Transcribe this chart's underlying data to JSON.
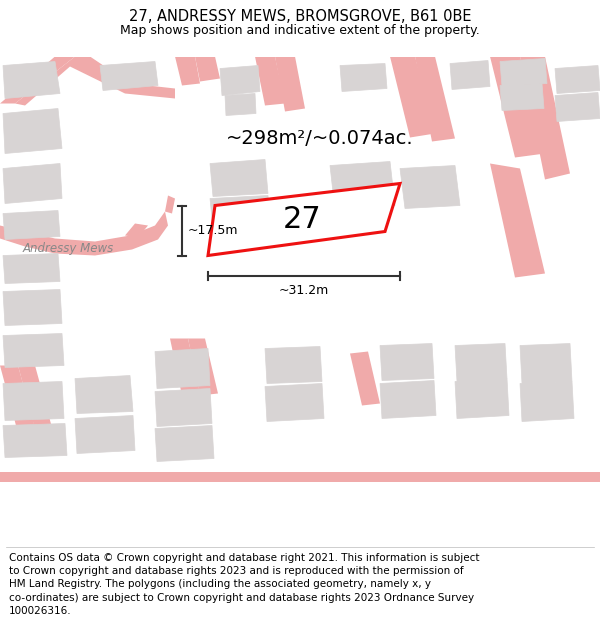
{
  "title": "27, ANDRESSY MEWS, BROMSGROVE, B61 0BE",
  "subtitle": "Map shows position and indicative extent of the property.",
  "footer": "Contains OS data © Crown copyright and database right 2021. This information is subject\nto Crown copyright and database rights 2023 and is reproduced with the permission of\nHM Land Registry. The polygons (including the associated geometry, namely x, y\nco-ordinates) are subject to Crown copyright and database rights 2023 Ordnance Survey\n100026316.",
  "area_label": "~298m²/~0.074ac.",
  "width_label": "~31.2m",
  "height_label": "~17.5m",
  "number_label": "27",
  "map_bg": "#f2f0f0",
  "road_color": "#f0aaaa",
  "building_fill": "#d8d4d4",
  "building_edge": "#d8d4d4",
  "plot_color": "#ee1111",
  "plot_fill": "#ffffff",
  "dim_color": "#333333",
  "road_label": "Andressy Mews",
  "title_fontsize": 10.5,
  "subtitle_fontsize": 9,
  "footer_fontsize": 7.5,
  "area_fontsize": 14,
  "dim_fontsize": 9,
  "number_fontsize": 22
}
